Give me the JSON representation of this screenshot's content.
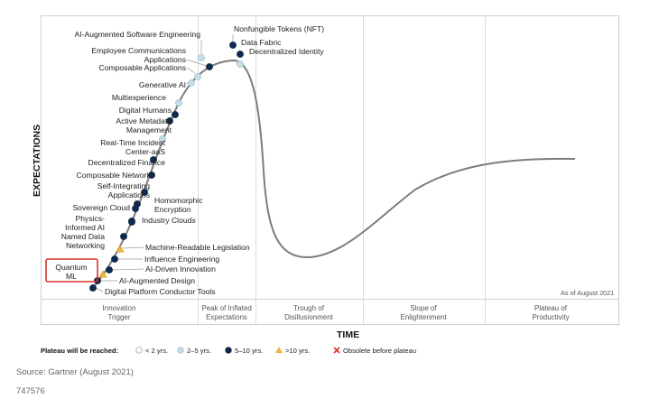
{
  "chart": {
    "y_axis_title": "EXPECTATIONS",
    "x_axis_title": "TIME",
    "as_of": "As of August 2021",
    "phases": [
      "Innovation|Trigger",
      "Peak of Inflated|Expectations",
      "Trough of|Disillusionment",
      "Slope of|Enlightenment",
      "Plateau of|Productivity"
    ],
    "technologies": [
      {
        "label": "AI-Augmented Software Engineering",
        "plateau": "2-5"
      },
      {
        "label": "Nonfungible Tokens (NFT)",
        "plateau": "5-10"
      },
      {
        "label": "Data Fabric",
        "plateau": "5-10"
      },
      {
        "label": "Decentralized Identity",
        "plateau": "2-5"
      },
      {
        "label": "Employee Communications|Applications",
        "plateau": "5-10"
      },
      {
        "label": "Composable Applications",
        "plateau": "2-5"
      },
      {
        "label": "Generative AI",
        "plateau": "2-5"
      },
      {
        "label": "Multiexperience",
        "plateau": "2-5"
      },
      {
        "label": "Digital Humans",
        "plateau": "5-10"
      },
      {
        "label": "Active Metadata|Management",
        "plateau": "5-10"
      },
      {
        "label": "Real-Time Incident|Center-aaS",
        "plateau": "2-5"
      },
      {
        "label": "Decentralized Finance",
        "plateau": "5-10"
      },
      {
        "label": "Composable Networks",
        "plateau": "5-10"
      },
      {
        "label": "Self-Integrating|Applications",
        "plateau": "5-10"
      },
      {
        "label": "Homomorphic|Encryption",
        "plateau": "5-10"
      },
      {
        "label": "Sovereign Cloud",
        "plateau": "5-10"
      },
      {
        "label": "Physics-|Informed AI",
        "plateau": "5-10"
      },
      {
        "label": "Industry Clouds",
        "plateau": "5-10"
      },
      {
        "label": "Named Data|Networking",
        "plateau": "5-10"
      },
      {
        "label": "Machine-Readable Legislation",
        "plateau": ">10"
      },
      {
        "label": "Influence Engineering",
        "plateau": "5-10"
      },
      {
        "label": "AI-Driven Innovation",
        "plateau": "5-10"
      },
      {
        "label": "Quantum|ML",
        "plateau": ">10"
      },
      {
        "label": "AI-Augmented Design",
        "plateau": "5-10"
      },
      {
        "label": "Digital Platform Conductor Tools",
        "plateau": "5-10"
      }
    ],
    "legend": {
      "title": "Plateau will be reached:",
      "items": [
        {
          "key": "<2",
          "label": "< 2 yrs.",
          "color": "#ffffff"
        },
        {
          "key": "2-5",
          "label": "2–5 yrs.",
          "color": "#c5dde7"
        },
        {
          "key": "5-10",
          "label": "5–10 yrs.",
          "color": "#0f2a4f"
        },
        {
          "key": ">10",
          "label": ">10 yrs.",
          "color": "#f2b33d"
        },
        {
          "key": "obsolete",
          "label": "Obsolete before plateau",
          "color": "#d9342b"
        }
      ]
    },
    "highlight_color": "#d9342b",
    "curve_color": "#7d7d7d"
  },
  "footer": {
    "source": "Source: Gartner (August 2021)",
    "id": "747576"
  }
}
